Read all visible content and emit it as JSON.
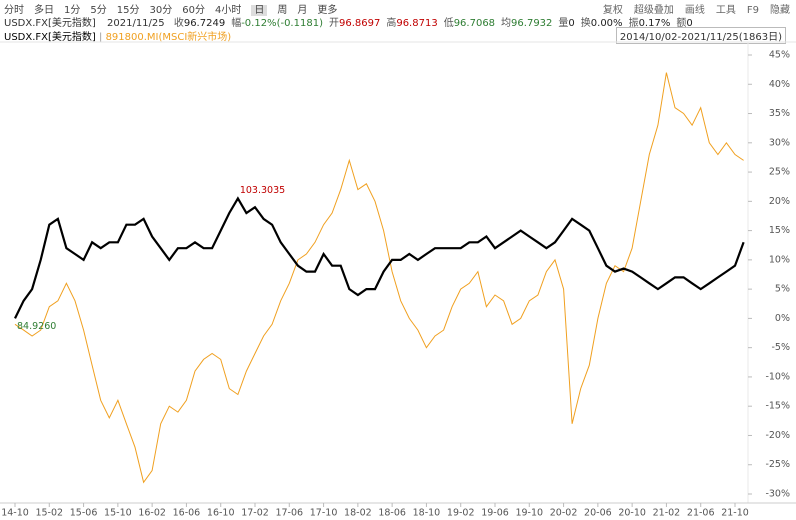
{
  "toolbar": {
    "periods": [
      "分时",
      "多日",
      "1分",
      "5分",
      "15分",
      "30分",
      "60分",
      "4小时",
      "日",
      "周",
      "月",
      "更多"
    ],
    "tools": [
      "复权",
      "超级叠加",
      "画线",
      "工具",
      "F9",
      "隐藏"
    ]
  },
  "quote": {
    "symbol": "USDX.FX[美元指数]",
    "date": "2021/11/25",
    "items": [
      {
        "label": "收",
        "value": "96.7249"
      },
      {
        "label": "幅",
        "value": "-0.12%(-0.1181)"
      },
      {
        "label": "开",
        "value": "96.8697"
      },
      {
        "label": "高",
        "value": "96.8713"
      },
      {
        "label": "低",
        "value": "96.7068"
      },
      {
        "label": "均",
        "value": "96.7932"
      },
      {
        "label": "量",
        "value": "0"
      },
      {
        "label": "换",
        "value": "0.00%"
      },
      {
        "label": "振",
        "value": "0.17%"
      },
      {
        "label": "额",
        "value": "0"
      }
    ]
  },
  "chart_data": {
    "type": "line",
    "range_label": "2014/10/02-2021/11/25(1863日)",
    "legend_separator": "|",
    "x": [
      "14-10",
      "14-11",
      "14-12",
      "15-01",
      "15-02",
      "15-03",
      "15-04",
      "15-05",
      "15-06",
      "15-07",
      "15-08",
      "15-09",
      "15-10",
      "15-11",
      "15-12",
      "16-01",
      "16-02",
      "16-03",
      "16-04",
      "16-05",
      "16-06",
      "16-07",
      "16-08",
      "16-09",
      "16-10",
      "16-11",
      "16-12",
      "17-01",
      "17-02",
      "17-03",
      "17-04",
      "17-05",
      "17-06",
      "17-07",
      "17-08",
      "17-09",
      "17-10",
      "17-11",
      "17-12",
      "18-01",
      "18-02",
      "18-03",
      "18-04",
      "18-05",
      "18-06",
      "18-07",
      "18-08",
      "18-09",
      "18-10",
      "18-11",
      "18-12",
      "19-01",
      "19-02",
      "19-03",
      "19-04",
      "19-05",
      "19-06",
      "19-07",
      "19-08",
      "19-09",
      "19-10",
      "19-11",
      "19-12",
      "20-01",
      "20-02",
      "20-03",
      "20-04",
      "20-05",
      "20-06",
      "20-07",
      "20-08",
      "20-09",
      "20-10",
      "20-11",
      "20-12",
      "21-01",
      "21-02",
      "21-03",
      "21-04",
      "21-05",
      "21-06",
      "21-07",
      "21-08",
      "21-09",
      "21-10",
      "21-11"
    ],
    "series": [
      {
        "name": "USDX.FX[美元指数]",
        "color": "#000000",
        "values": [
          0,
          3,
          5,
          10,
          16,
          17,
          12,
          11,
          10,
          13,
          12,
          13,
          13,
          16,
          16,
          17,
          14,
          12,
          10,
          12,
          12,
          13,
          12,
          12,
          15,
          18,
          20.5,
          18,
          19,
          17,
          16,
          13,
          11,
          9,
          8,
          8,
          11,
          9,
          9,
          5,
          4,
          5,
          5,
          8,
          10,
          10,
          11,
          10,
          11,
          12,
          12,
          12,
          12,
          13,
          13,
          14,
          12,
          13,
          14,
          15,
          14,
          13,
          12,
          13,
          15,
          17,
          16,
          15,
          12,
          9,
          8,
          8.5,
          8,
          7,
          6,
          5,
          6,
          7,
          7,
          6,
          5,
          6,
          7,
          8,
          9,
          13
        ]
      },
      {
        "name": "891800.MI(MSCI新兴市场)",
        "color": "#f0a020",
        "values": [
          -1,
          -2,
          -3,
          -2,
          2,
          3,
          6,
          3,
          -2,
          -8,
          -14,
          -17,
          -14,
          -18,
          -22,
          -28,
          -26,
          -18,
          -15,
          -16,
          -14,
          -9,
          -7,
          -6,
          -7,
          -12,
          -13,
          -9,
          -6,
          -3,
          -1,
          3,
          6,
          10,
          11,
          13,
          16,
          18,
          22,
          27,
          22,
          23,
          20,
          15,
          8,
          3,
          0,
          -2,
          -5,
          -3,
          -2,
          2,
          5,
          6,
          8,
          2,
          4,
          3,
          -1,
          0,
          3,
          4,
          8,
          10,
          5,
          -18,
          -12,
          -8,
          0,
          6,
          9,
          8,
          12,
          20,
          28,
          33,
          42,
          36,
          35,
          33,
          36,
          30,
          28,
          30,
          28,
          27
        ]
      }
    ],
    "annotations": [
      {
        "text": "103.3035",
        "color": "#c00000"
      },
      {
        "text": "84.9260",
        "color": "#2e7d32"
      }
    ],
    "xticks": [
      "14-10",
      "15-02",
      "15-06",
      "15-10",
      "16-02",
      "16-06",
      "16-10",
      "17-02",
      "17-06",
      "17-10",
      "18-02",
      "18-06",
      "18-10",
      "19-02",
      "19-06",
      "19-10",
      "20-02",
      "20-06",
      "20-10",
      "21-02",
      "21-06",
      "21-10"
    ],
    "ylim": [
      -30,
      45
    ],
    "yticks": [
      {
        "value": 45,
        "label": "45%"
      },
      {
        "value": 40,
        "label": "40%"
      },
      {
        "value": 35,
        "label": "35%"
      },
      {
        "value": 30,
        "label": "30%"
      },
      {
        "value": 25,
        "label": "25%"
      },
      {
        "value": 20,
        "label": "20%"
      },
      {
        "value": 15,
        "label": "15%"
      },
      {
        "value": 10,
        "label": "10%"
      },
      {
        "value": 5,
        "label": "5%"
      },
      {
        "value": 0,
        "label": "0%"
      },
      {
        "value": -5,
        "label": "-5%"
      },
      {
        "value": -10,
        "label": "-10%"
      },
      {
        "value": -15,
        "label": "-15%"
      },
      {
        "value": -20,
        "label": "-20%"
      },
      {
        "value": -25,
        "label": "-25%"
      },
      {
        "value": -30,
        "label": "-30%"
      }
    ]
  }
}
